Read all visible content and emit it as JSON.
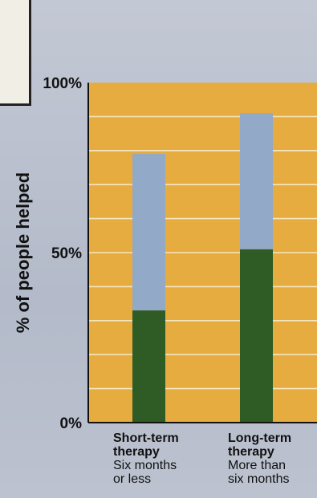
{
  "chart_data": {
    "type": "bar",
    "stacked": true,
    "ylabel": "% of people helped",
    "ylim": [
      0,
      100
    ],
    "yticks": [
      "0%",
      "50%",
      "100%"
    ],
    "grid": true,
    "categories": [
      {
        "title_line1": "Short-term",
        "title_line2": "therapy",
        "sub_line1": "Six months",
        "sub_line2": "or less"
      },
      {
        "title_line1": "Long-term",
        "title_line2": "therapy",
        "sub_line1": "More than",
        "sub_line2": "six months"
      }
    ],
    "series": [
      {
        "color": "#2f5c24",
        "values": [
          33,
          51
        ]
      },
      {
        "color": "#93a9c8",
        "values": [
          46,
          40
        ]
      }
    ],
    "totals": [
      79,
      91
    ],
    "plot_background": "#e6ac3f",
    "gridline_color": "#f5e6c0"
  }
}
